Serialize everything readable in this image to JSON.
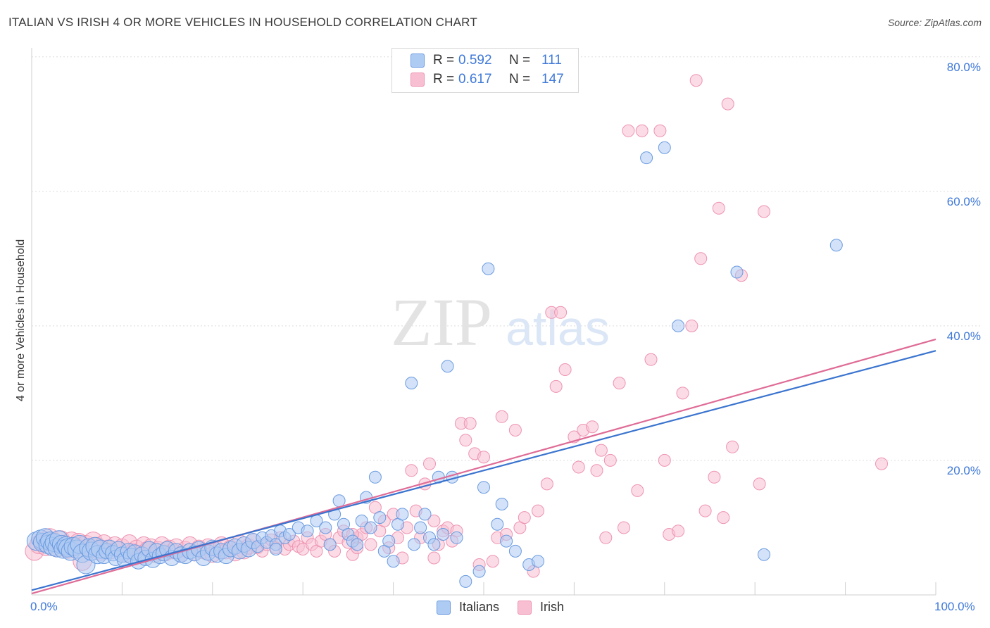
{
  "title": "ITALIAN VS IRISH 4 OR MORE VEHICLES IN HOUSEHOLD CORRELATION CHART",
  "source": "Source: ZipAtlas.com",
  "watermark": {
    "zip": "ZIP",
    "atlas": "atlas"
  },
  "colors": {
    "italians_fill": "#aecbf3",
    "italians_stroke": "#6a9be0",
    "italians_line": "#3a74cf",
    "irish_fill": "#f7bfd1",
    "irish_stroke": "#ee93b1",
    "irish_line": "#df6b96",
    "tick_text": "#3f79d8",
    "grid": "#dcdcdc"
  },
  "legend_top": {
    "italians": {
      "r_label": "R =",
      "r_value": "0.592",
      "n_label": "N =",
      "n_value": "111"
    },
    "irish": {
      "r_label": "R =",
      "r_value": "0.617",
      "n_label": "N =",
      "n_value": "147"
    }
  },
  "legend_bottom": {
    "italians": "Italians",
    "irish": "Irish"
  },
  "chart_data": {
    "type": "scatter",
    "xlabel": "",
    "ylabel": "4 or more Vehicles in Household",
    "xlim": [
      0,
      100
    ],
    "ylim": [
      0,
      84
    ],
    "x_tick_labels": {
      "0.0%": 0,
      "100.0%": 100
    },
    "y_tick_labels": {
      "20.0%": 20,
      "40.0%": 40,
      "60.0%": 60,
      "80.0%": 80
    },
    "grid": "dashed horizontal at y ticks",
    "legend_position": "top-center",
    "series": [
      {
        "name": "Italians",
        "trendline": {
          "x": [
            0,
            100
          ],
          "y": [
            0.7,
            36.3
          ]
        },
        "points": [
          [
            0.5,
            8.0
          ],
          [
            1.0,
            8.3
          ],
          [
            1.2,
            7.8
          ],
          [
            1.5,
            8.5
          ],
          [
            1.8,
            7.5
          ],
          [
            2.0,
            8.0
          ],
          [
            2.3,
            7.2
          ],
          [
            2.5,
            7.8
          ],
          [
            2.8,
            7.0
          ],
          [
            3.0,
            8.2
          ],
          [
            3.3,
            7.5
          ],
          [
            3.5,
            6.8
          ],
          [
            3.8,
            7.3
          ],
          [
            4.0,
            7.0
          ],
          [
            4.3,
            6.5
          ],
          [
            4.6,
            7.2
          ],
          [
            5.0,
            6.8
          ],
          [
            5.3,
            7.5
          ],
          [
            5.6,
            6.2
          ],
          [
            6.0,
            4.5
          ],
          [
            6.3,
            7.0
          ],
          [
            6.6,
            6.5
          ],
          [
            7.0,
            7.2
          ],
          [
            7.3,
            6.0
          ],
          [
            7.6,
            6.8
          ],
          [
            8.0,
            5.8
          ],
          [
            8.3,
            6.5
          ],
          [
            8.6,
            7.0
          ],
          [
            9.0,
            6.2
          ],
          [
            9.3,
            5.5
          ],
          [
            9.6,
            6.8
          ],
          [
            10.0,
            6.0
          ],
          [
            10.3,
            5.2
          ],
          [
            10.7,
            6.5
          ],
          [
            11.0,
            5.8
          ],
          [
            11.4,
            6.3
          ],
          [
            11.8,
            5.0
          ],
          [
            12.2,
            6.0
          ],
          [
            12.6,
            5.5
          ],
          [
            13.0,
            6.8
          ],
          [
            13.4,
            5.2
          ],
          [
            13.8,
            6.5
          ],
          [
            14.2,
            5.8
          ],
          [
            14.6,
            6.2
          ],
          [
            15.0,
            6.8
          ],
          [
            15.5,
            5.5
          ],
          [
            16.0,
            6.5
          ],
          [
            16.5,
            6.0
          ],
          [
            17.0,
            5.8
          ],
          [
            17.5,
            6.5
          ],
          [
            18.0,
            6.2
          ],
          [
            18.5,
            6.8
          ],
          [
            19.0,
            5.5
          ],
          [
            19.5,
            6.3
          ],
          [
            20.0,
            7.0
          ],
          [
            20.5,
            6.0
          ],
          [
            21.0,
            6.5
          ],
          [
            21.5,
            5.8
          ],
          [
            22.0,
            6.8
          ],
          [
            22.5,
            7.2
          ],
          [
            23.0,
            6.5
          ],
          [
            23.5,
            7.5
          ],
          [
            24.0,
            6.8
          ],
          [
            24.5,
            8.0
          ],
          [
            25.0,
            7.2
          ],
          [
            25.5,
            8.5
          ],
          [
            26.0,
            7.8
          ],
          [
            26.5,
            8.8
          ],
          [
            27.0,
            7.5
          ],
          [
            27.5,
            9.5
          ],
          [
            28.0,
            8.5
          ],
          [
            28.5,
            9.0
          ],
          [
            29.5,
            10.0
          ],
          [
            30.5,
            9.5
          ],
          [
            31.5,
            11.0
          ],
          [
            32.5,
            10.0
          ],
          [
            33.0,
            7.5
          ],
          [
            33.5,
            12.0
          ],
          [
            34.0,
            14.0
          ],
          [
            34.5,
            10.5
          ],
          [
            35.0,
            9.0
          ],
          [
            35.5,
            8.0
          ],
          [
            36.0,
            7.5
          ],
          [
            36.5,
            11.0
          ],
          [
            37.0,
            14.5
          ],
          [
            37.5,
            10.0
          ],
          [
            38.0,
            17.5
          ],
          [
            38.5,
            11.5
          ],
          [
            39.0,
            6.5
          ],
          [
            39.5,
            8.0
          ],
          [
            40.0,
            5.0
          ],
          [
            40.5,
            10.5
          ],
          [
            41.0,
            12.0
          ],
          [
            42.0,
            31.5
          ],
          [
            42.3,
            7.5
          ],
          [
            43.0,
            10.0
          ],
          [
            43.5,
            12.0
          ],
          [
            44.0,
            8.5
          ],
          [
            44.5,
            7.5
          ],
          [
            45.0,
            17.5
          ],
          [
            45.5,
            9.0
          ],
          [
            46.0,
            34.0
          ],
          [
            46.5,
            17.5
          ],
          [
            47.0,
            8.5
          ],
          [
            48.0,
            2.0
          ],
          [
            49.5,
            3.5
          ],
          [
            50.0,
            16.0
          ],
          [
            50.5,
            48.5
          ],
          [
            51.5,
            10.5
          ],
          [
            52.0,
            13.5
          ],
          [
            52.5,
            8.0
          ],
          [
            53.5,
            6.5
          ],
          [
            55.0,
            4.5
          ],
          [
            56.0,
            5.0
          ],
          [
            68.0,
            65.0
          ],
          [
            70.0,
            66.5
          ],
          [
            71.5,
            40.0
          ],
          [
            78.0,
            48.0
          ],
          [
            81.0,
            6.0
          ],
          [
            89.0,
            52.0
          ],
          [
            27.0,
            6.8
          ]
        ],
        "point_size": "larger circles near origin (dense cluster), small elsewhere"
      },
      {
        "name": "Irish",
        "trendline": {
          "x": [
            0,
            100
          ],
          "y": [
            0.2,
            38.0
          ]
        },
        "points": [
          [
            0.3,
            6.5
          ],
          [
            0.8,
            7.5
          ],
          [
            1.2,
            8.0
          ],
          [
            1.6,
            7.2
          ],
          [
            2.0,
            8.5
          ],
          [
            2.4,
            7.8
          ],
          [
            2.8,
            7.0
          ],
          [
            3.2,
            8.2
          ],
          [
            3.6,
            7.5
          ],
          [
            4.0,
            6.8
          ],
          [
            4.4,
            8.0
          ],
          [
            4.8,
            7.2
          ],
          [
            5.2,
            7.8
          ],
          [
            5.6,
            5.0
          ],
          [
            6.0,
            7.5
          ],
          [
            6.4,
            6.8
          ],
          [
            6.8,
            8.0
          ],
          [
            7.2,
            7.2
          ],
          [
            7.6,
            6.5
          ],
          [
            8.0,
            7.8
          ],
          [
            8.4,
            7.0
          ],
          [
            8.8,
            6.5
          ],
          [
            9.2,
            7.5
          ],
          [
            9.6,
            6.8
          ],
          [
            10.0,
            7.2
          ],
          [
            10.4,
            6.0
          ],
          [
            10.8,
            7.8
          ],
          [
            11.2,
            6.5
          ],
          [
            11.6,
            7.0
          ],
          [
            12.0,
            6.2
          ],
          [
            12.4,
            7.5
          ],
          [
            12.8,
            6.8
          ],
          [
            13.2,
            7.2
          ],
          [
            13.6,
            6.0
          ],
          [
            14.0,
            6.8
          ],
          [
            14.4,
            7.5
          ],
          [
            14.8,
            6.2
          ],
          [
            15.2,
            7.0
          ],
          [
            15.6,
            6.5
          ],
          [
            16.0,
            7.2
          ],
          [
            16.5,
            6.0
          ],
          [
            17.0,
            6.8
          ],
          [
            17.5,
            7.5
          ],
          [
            18.0,
            6.2
          ],
          [
            18.5,
            7.0
          ],
          [
            19.0,
            6.5
          ],
          [
            19.5,
            7.2
          ],
          [
            20.0,
            6.0
          ],
          [
            20.5,
            6.8
          ],
          [
            21.0,
            7.5
          ],
          [
            21.5,
            6.5
          ],
          [
            22.0,
            7.0
          ],
          [
            22.5,
            6.2
          ],
          [
            23.0,
            7.8
          ],
          [
            23.5,
            6.5
          ],
          [
            24.0,
            7.2
          ],
          [
            24.5,
            8.0
          ],
          [
            25.0,
            7.0
          ],
          [
            25.5,
            6.5
          ],
          [
            26.0,
            7.5
          ],
          [
            26.5,
            8.2
          ],
          [
            27.0,
            7.0
          ],
          [
            27.5,
            8.5
          ],
          [
            28.0,
            6.8
          ],
          [
            28.5,
            7.5
          ],
          [
            29.0,
            8.0
          ],
          [
            29.5,
            7.2
          ],
          [
            30.0,
            6.8
          ],
          [
            30.5,
            8.5
          ],
          [
            31.0,
            7.5
          ],
          [
            31.5,
            6.5
          ],
          [
            32.0,
            8.0
          ],
          [
            32.5,
            9.0
          ],
          [
            33.0,
            7.5
          ],
          [
            33.5,
            6.5
          ],
          [
            34.0,
            8.5
          ],
          [
            34.5,
            9.5
          ],
          [
            35.0,
            7.8
          ],
          [
            35.5,
            6.0
          ],
          [
            36.0,
            8.5
          ],
          [
            36.5,
            9.0
          ],
          [
            37.0,
            10.0
          ],
          [
            37.5,
            7.5
          ],
          [
            38.0,
            13.0
          ],
          [
            38.5,
            9.5
          ],
          [
            39.0,
            11.0
          ],
          [
            39.5,
            7.0
          ],
          [
            40.0,
            12.0
          ],
          [
            40.5,
            8.5
          ],
          [
            41.0,
            5.5
          ],
          [
            41.5,
            10.0
          ],
          [
            42.0,
            18.5
          ],
          [
            42.5,
            12.5
          ],
          [
            43.0,
            8.5
          ],
          [
            43.5,
            16.5
          ],
          [
            44.0,
            19.5
          ],
          [
            44.5,
            11.0
          ],
          [
            45.0,
            7.5
          ],
          [
            45.5,
            9.5
          ],
          [
            46.0,
            10.0
          ],
          [
            46.5,
            8.0
          ],
          [
            47.0,
            9.5
          ],
          [
            47.5,
            25.5
          ],
          [
            48.0,
            23.0
          ],
          [
            48.5,
            25.5
          ],
          [
            49.0,
            21.0
          ],
          [
            49.5,
            4.5
          ],
          [
            50.0,
            20.5
          ],
          [
            51.0,
            5.0
          ],
          [
            51.5,
            8.5
          ],
          [
            52.0,
            26.5
          ],
          [
            52.5,
            9.0
          ],
          [
            53.5,
            24.5
          ],
          [
            54.0,
            10.0
          ],
          [
            54.5,
            11.5
          ],
          [
            55.5,
            3.5
          ],
          [
            56.0,
            12.5
          ],
          [
            57.0,
            16.5
          ],
          [
            57.5,
            42.0
          ],
          [
            58.0,
            31.0
          ],
          [
            59.0,
            33.5
          ],
          [
            60.0,
            23.5
          ],
          [
            60.5,
            19.0
          ],
          [
            61.0,
            24.5
          ],
          [
            62.0,
            25.0
          ],
          [
            62.5,
            18.5
          ],
          [
            63.0,
            21.5
          ],
          [
            64.0,
            20.0
          ],
          [
            65.0,
            31.5
          ],
          [
            65.5,
            10.0
          ],
          [
            67.0,
            15.5
          ],
          [
            67.5,
            69.0
          ],
          [
            68.5,
            35.0
          ],
          [
            69.5,
            69.0
          ],
          [
            70.0,
            20.0
          ],
          [
            70.5,
            9.0
          ],
          [
            71.5,
            9.5
          ],
          [
            72.0,
            30.0
          ],
          [
            73.0,
            40.0
          ],
          [
            74.0,
            50.0
          ],
          [
            74.5,
            12.5
          ],
          [
            75.5,
            17.5
          ],
          [
            76.0,
            57.5
          ],
          [
            76.5,
            11.5
          ],
          [
            77.0,
            73.0
          ],
          [
            77.5,
            22.0
          ],
          [
            78.5,
            47.5
          ],
          [
            80.5,
            16.5
          ],
          [
            81.0,
            57.0
          ],
          [
            94.0,
            19.5
          ],
          [
            73.5,
            76.5
          ],
          [
            58.5,
            42.0
          ],
          [
            44.5,
            5.5
          ],
          [
            63.5,
            8.5
          ],
          [
            35.5,
            9.0
          ],
          [
            36.0,
            7.0
          ],
          [
            66.0,
            69.0
          ]
        ],
        "point_size": "larger circles near origin (dense cluster), small elsewhere"
      }
    ]
  }
}
